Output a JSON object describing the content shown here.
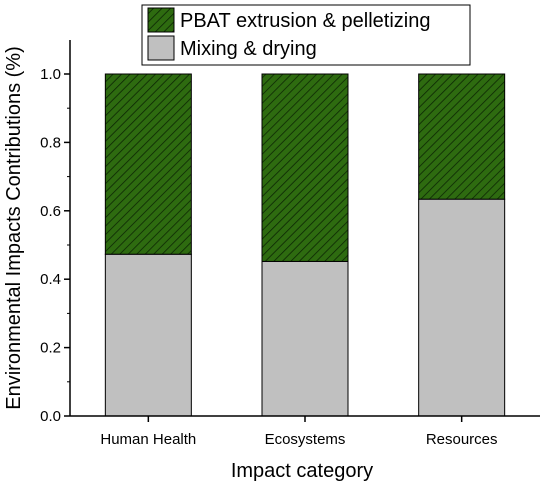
{
  "chart_data": {
    "type": "bar",
    "stacked": true,
    "categories": [
      "Human Health",
      "Ecosystems",
      "Resources"
    ],
    "series": [
      {
        "name": "Mixing & drying",
        "values": [
          0.473,
          0.452,
          0.634
        ],
        "color": "#c0c0c0",
        "pattern": "solid"
      },
      {
        "name": "PBAT extrusion & pelletizing",
        "values": [
          0.527,
          0.548,
          0.366
        ],
        "color": "#2e6b10",
        "pattern": "diagonal-hatch"
      }
    ],
    "legend": {
      "placement": "top-center",
      "order": [
        "PBAT extrusion & pelletizing",
        "Mixing & drying"
      ]
    },
    "xlabel": "Impact category",
    "ylabel": "Environmental Impacts Contributions (%)",
    "ylim": [
      0.0,
      1.0
    ],
    "yticks": [
      "0.0",
      "0.2",
      "0.4",
      "0.6",
      "0.8",
      "1.0"
    ],
    "grid": false
  }
}
